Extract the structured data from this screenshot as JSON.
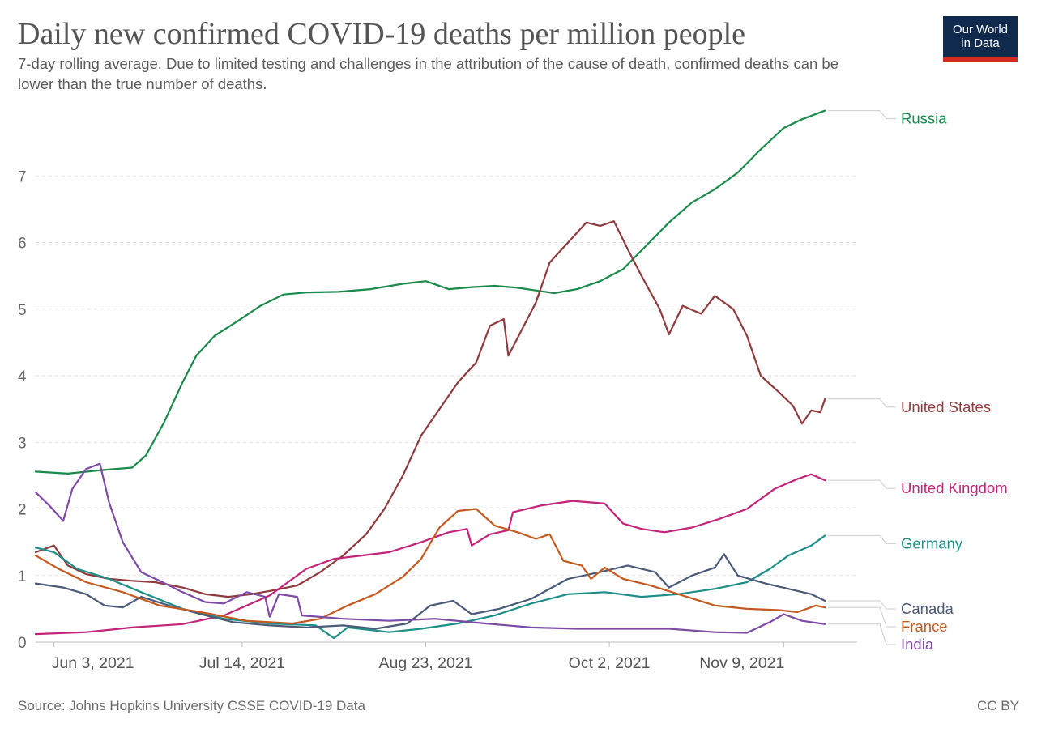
{
  "header": {
    "title": "Daily new confirmed COVID-19 deaths per million people",
    "subtitle": "7-day rolling average. Due to limited testing and challenges in the attribution of the cause of death, confirmed deaths can be lower than the true number of deaths."
  },
  "logo": {
    "line1": "Our World",
    "line2": "in Data"
  },
  "footer": {
    "source": "Source: Johns Hopkins University CSSE COVID-19 Data",
    "license": "CC BY"
  },
  "chart_data": {
    "type": "line",
    "title": "Daily new confirmed COVID-19 deaths per million people",
    "subtitle": "7-day rolling average. Due to limited testing and challenges in the attribution of the cause of death, confirmed deaths can be lower than the true number of deaths.",
    "xlabel": "",
    "ylabel": "",
    "ylim": [
      0,
      8
    ],
    "yticks": [
      0,
      1,
      2,
      3,
      4,
      5,
      6,
      7
    ],
    "xlim": [
      "2021-05-30",
      "2021-11-25"
    ],
    "xticks": [
      {
        "date": "2021-06-03",
        "label": "Jun 3, 2021"
      },
      {
        "date": "2021-07-14",
        "label": "Jul 14, 2021"
      },
      {
        "date": "2021-08-23",
        "label": "Aug 23, 2021"
      },
      {
        "date": "2021-10-02",
        "label": "Oct 2, 2021"
      },
      {
        "date": "2021-11-09",
        "label": "Nov 9, 2021"
      }
    ],
    "grid": true,
    "legend": "right, inline labels",
    "series": [
      {
        "name": "Russia",
        "color": "#1a8a4a",
        "points": [
          [
            "2021-05-30",
            2.56
          ],
          [
            "2021-06-06",
            2.53
          ],
          [
            "2021-06-13",
            2.58
          ],
          [
            "2021-06-20",
            2.62
          ],
          [
            "2021-06-23",
            2.8
          ],
          [
            "2021-06-27",
            3.3
          ],
          [
            "2021-07-01",
            3.9
          ],
          [
            "2021-07-04",
            4.3
          ],
          [
            "2021-07-08",
            4.6
          ],
          [
            "2021-07-13",
            4.82
          ],
          [
            "2021-07-18",
            5.05
          ],
          [
            "2021-07-23",
            5.22
          ],
          [
            "2021-07-28",
            5.25
          ],
          [
            "2021-08-04",
            5.26
          ],
          [
            "2021-08-11",
            5.3
          ],
          [
            "2021-08-18",
            5.38
          ],
          [
            "2021-08-23",
            5.42
          ],
          [
            "2021-08-28",
            5.3
          ],
          [
            "2021-09-02",
            5.33
          ],
          [
            "2021-09-07",
            5.35
          ],
          [
            "2021-09-12",
            5.32
          ],
          [
            "2021-09-16",
            5.28
          ],
          [
            "2021-09-20",
            5.24
          ],
          [
            "2021-09-25",
            5.3
          ],
          [
            "2021-09-30",
            5.42
          ],
          [
            "2021-10-05",
            5.6
          ],
          [
            "2021-10-10",
            5.95
          ],
          [
            "2021-10-15",
            6.3
          ],
          [
            "2021-10-20",
            6.6
          ],
          [
            "2021-10-25",
            6.8
          ],
          [
            "2021-10-30",
            7.05
          ],
          [
            "2021-11-04",
            7.4
          ],
          [
            "2021-11-09",
            7.72
          ],
          [
            "2021-11-13",
            7.85
          ],
          [
            "2021-11-18",
            7.98
          ]
        ]
      },
      {
        "name": "United States",
        "color": "#8f3a3d",
        "points": [
          [
            "2021-05-30",
            1.35
          ],
          [
            "2021-06-03",
            1.45
          ],
          [
            "2021-06-06",
            1.15
          ],
          [
            "2021-06-10",
            1.02
          ],
          [
            "2021-06-15",
            0.95
          ],
          [
            "2021-06-20",
            0.92
          ],
          [
            "2021-06-25",
            0.9
          ],
          [
            "2021-07-01",
            0.82
          ],
          [
            "2021-07-06",
            0.72
          ],
          [
            "2021-07-11",
            0.68
          ],
          [
            "2021-07-16",
            0.72
          ],
          [
            "2021-07-21",
            0.78
          ],
          [
            "2021-07-26",
            0.85
          ],
          [
            "2021-07-31",
            1.05
          ],
          [
            "2021-08-05",
            1.3
          ],
          [
            "2021-08-10",
            1.62
          ],
          [
            "2021-08-14",
            2.0
          ],
          [
            "2021-08-18",
            2.5
          ],
          [
            "2021-08-22",
            3.1
          ],
          [
            "2021-08-26",
            3.5
          ],
          [
            "2021-08-30",
            3.9
          ],
          [
            "2021-09-03",
            4.2
          ],
          [
            "2021-09-06",
            4.75
          ],
          [
            "2021-09-09",
            4.85
          ],
          [
            "2021-09-10",
            4.3
          ],
          [
            "2021-09-13",
            4.7
          ],
          [
            "2021-09-16",
            5.1
          ],
          [
            "2021-09-19",
            5.7
          ],
          [
            "2021-09-23",
            6.0
          ],
          [
            "2021-09-27",
            6.3
          ],
          [
            "2021-09-30",
            6.25
          ],
          [
            "2021-10-03",
            6.32
          ],
          [
            "2021-10-06",
            5.9
          ],
          [
            "2021-10-09",
            5.5
          ],
          [
            "2021-10-13",
            5.0
          ],
          [
            "2021-10-15",
            4.62
          ],
          [
            "2021-10-18",
            5.05
          ],
          [
            "2021-10-22",
            4.93
          ],
          [
            "2021-10-25",
            5.2
          ],
          [
            "2021-10-29",
            5.0
          ],
          [
            "2021-11-01",
            4.6
          ],
          [
            "2021-11-04",
            4.0
          ],
          [
            "2021-11-08",
            3.75
          ],
          [
            "2021-11-11",
            3.55
          ],
          [
            "2021-11-13",
            3.28
          ],
          [
            "2021-11-15",
            3.48
          ],
          [
            "2021-11-17",
            3.45
          ],
          [
            "2021-11-18",
            3.65
          ]
        ]
      },
      {
        "name": "United Kingdom",
        "color": "#c4237a",
        "points": [
          [
            "2021-05-30",
            0.12
          ],
          [
            "2021-06-10",
            0.15
          ],
          [
            "2021-06-20",
            0.22
          ],
          [
            "2021-07-01",
            0.27
          ],
          [
            "2021-07-10",
            0.4
          ],
          [
            "2021-07-20",
            0.7
          ],
          [
            "2021-07-28",
            1.1
          ],
          [
            "2021-08-03",
            1.25
          ],
          [
            "2021-08-09",
            1.3
          ],
          [
            "2021-08-15",
            1.35
          ],
          [
            "2021-08-22",
            1.5
          ],
          [
            "2021-08-28",
            1.65
          ],
          [
            "2021-09-01",
            1.7
          ],
          [
            "2021-09-02",
            1.45
          ],
          [
            "2021-09-06",
            1.62
          ],
          [
            "2021-09-10",
            1.68
          ],
          [
            "2021-09-11",
            1.95
          ],
          [
            "2021-09-17",
            2.05
          ],
          [
            "2021-09-24",
            2.12
          ],
          [
            "2021-10-01",
            2.08
          ],
          [
            "2021-10-05",
            1.78
          ],
          [
            "2021-10-09",
            1.7
          ],
          [
            "2021-10-14",
            1.65
          ],
          [
            "2021-10-20",
            1.72
          ],
          [
            "2021-10-26",
            1.85
          ],
          [
            "2021-11-01",
            2.0
          ],
          [
            "2021-11-07",
            2.3
          ],
          [
            "2021-11-12",
            2.45
          ],
          [
            "2021-11-15",
            2.52
          ],
          [
            "2021-11-18",
            2.43
          ]
        ]
      },
      {
        "name": "Germany",
        "color": "#1e8f88",
        "points": [
          [
            "2021-05-30",
            1.42
          ],
          [
            "2021-06-03",
            1.35
          ],
          [
            "2021-06-08",
            1.1
          ],
          [
            "2021-06-15",
            0.95
          ],
          [
            "2021-06-22",
            0.75
          ],
          [
            "2021-07-01",
            0.5
          ],
          [
            "2021-07-10",
            0.35
          ],
          [
            "2021-07-20",
            0.28
          ],
          [
            "2021-07-30",
            0.25
          ],
          [
            "2021-08-03",
            0.06
          ],
          [
            "2021-08-06",
            0.22
          ],
          [
            "2021-08-15",
            0.15
          ],
          [
            "2021-08-22",
            0.2
          ],
          [
            "2021-08-30",
            0.28
          ],
          [
            "2021-09-07",
            0.4
          ],
          [
            "2021-09-15",
            0.58
          ],
          [
            "2021-09-23",
            0.72
          ],
          [
            "2021-10-01",
            0.75
          ],
          [
            "2021-10-09",
            0.68
          ],
          [
            "2021-10-17",
            0.72
          ],
          [
            "2021-10-25",
            0.8
          ],
          [
            "2021-11-01",
            0.9
          ],
          [
            "2021-11-06",
            1.1
          ],
          [
            "2021-11-10",
            1.3
          ],
          [
            "2021-11-15",
            1.45
          ],
          [
            "2021-11-18",
            1.6
          ]
        ]
      },
      {
        "name": "Canada",
        "color": "#4b5a78",
        "points": [
          [
            "2021-05-30",
            0.88
          ],
          [
            "2021-06-05",
            0.82
          ],
          [
            "2021-06-10",
            0.72
          ],
          [
            "2021-06-14",
            0.55
          ],
          [
            "2021-06-18",
            0.52
          ],
          [
            "2021-06-22",
            0.68
          ],
          [
            "2021-06-28",
            0.55
          ],
          [
            "2021-07-05",
            0.42
          ],
          [
            "2021-07-12",
            0.3
          ],
          [
            "2021-07-20",
            0.25
          ],
          [
            "2021-07-28",
            0.22
          ],
          [
            "2021-08-05",
            0.25
          ],
          [
            "2021-08-12",
            0.2
          ],
          [
            "2021-08-19",
            0.28
          ],
          [
            "2021-08-24",
            0.55
          ],
          [
            "2021-08-29",
            0.62
          ],
          [
            "2021-09-02",
            0.42
          ],
          [
            "2021-09-08",
            0.5
          ],
          [
            "2021-09-15",
            0.65
          ],
          [
            "2021-09-23",
            0.95
          ],
          [
            "2021-09-30",
            1.05
          ],
          [
            "2021-10-06",
            1.15
          ],
          [
            "2021-10-12",
            1.05
          ],
          [
            "2021-10-15",
            0.82
          ],
          [
            "2021-10-20",
            1.0
          ],
          [
            "2021-10-25",
            1.12
          ],
          [
            "2021-10-27",
            1.32
          ],
          [
            "2021-10-30",
            1.0
          ],
          [
            "2021-11-05",
            0.88
          ],
          [
            "2021-11-10",
            0.8
          ],
          [
            "2021-11-15",
            0.72
          ],
          [
            "2021-11-18",
            0.62
          ]
        ]
      },
      {
        "name": "France",
        "color": "#c55a1f",
        "points": [
          [
            "2021-05-30",
            1.3
          ],
          [
            "2021-06-04",
            1.1
          ],
          [
            "2021-06-10",
            0.9
          ],
          [
            "2021-06-18",
            0.75
          ],
          [
            "2021-06-26",
            0.55
          ],
          [
            "2021-07-05",
            0.45
          ],
          [
            "2021-07-15",
            0.32
          ],
          [
            "2021-07-25",
            0.28
          ],
          [
            "2021-07-31",
            0.35
          ],
          [
            "2021-08-06",
            0.55
          ],
          [
            "2021-08-12",
            0.72
          ],
          [
            "2021-08-18",
            0.98
          ],
          [
            "2021-08-22",
            1.25
          ],
          [
            "2021-08-26",
            1.72
          ],
          [
            "2021-08-30",
            1.97
          ],
          [
            "2021-09-03",
            2.0
          ],
          [
            "2021-09-07",
            1.75
          ],
          [
            "2021-09-12",
            1.65
          ],
          [
            "2021-09-16",
            1.55
          ],
          [
            "2021-09-19",
            1.62
          ],
          [
            "2021-09-22",
            1.22
          ],
          [
            "2021-09-26",
            1.15
          ],
          [
            "2021-09-28",
            0.95
          ],
          [
            "2021-10-01",
            1.12
          ],
          [
            "2021-10-05",
            0.95
          ],
          [
            "2021-10-11",
            0.85
          ],
          [
            "2021-10-18",
            0.7
          ],
          [
            "2021-10-25",
            0.55
          ],
          [
            "2021-11-01",
            0.5
          ],
          [
            "2021-11-08",
            0.48
          ],
          [
            "2021-11-12",
            0.45
          ],
          [
            "2021-11-16",
            0.55
          ],
          [
            "2021-11-18",
            0.52
          ]
        ]
      },
      {
        "name": "India",
        "color": "#7d4aa6",
        "points": [
          [
            "2021-05-30",
            2.25
          ],
          [
            "2021-06-02",
            2.05
          ],
          [
            "2021-06-05",
            1.82
          ],
          [
            "2021-06-07",
            2.3
          ],
          [
            "2021-06-10",
            2.6
          ],
          [
            "2021-06-13",
            2.68
          ],
          [
            "2021-06-15",
            2.1
          ],
          [
            "2021-06-18",
            1.5
          ],
          [
            "2021-06-22",
            1.05
          ],
          [
            "2021-06-26",
            0.92
          ],
          [
            "2021-07-01",
            0.75
          ],
          [
            "2021-07-06",
            0.6
          ],
          [
            "2021-07-10",
            0.58
          ],
          [
            "2021-07-15",
            0.75
          ],
          [
            "2021-07-19",
            0.68
          ],
          [
            "2021-07-20",
            0.38
          ],
          [
            "2021-07-22",
            0.72
          ],
          [
            "2021-07-26",
            0.68
          ],
          [
            "2021-07-27",
            0.4
          ],
          [
            "2021-08-05",
            0.35
          ],
          [
            "2021-08-15",
            0.32
          ],
          [
            "2021-08-25",
            0.35
          ],
          [
            "2021-09-05",
            0.28
          ],
          [
            "2021-09-15",
            0.22
          ],
          [
            "2021-09-25",
            0.2
          ],
          [
            "2021-10-05",
            0.2
          ],
          [
            "2021-10-15",
            0.2
          ],
          [
            "2021-10-25",
            0.15
          ],
          [
            "2021-11-01",
            0.14
          ],
          [
            "2021-11-06",
            0.3
          ],
          [
            "2021-11-09",
            0.42
          ],
          [
            "2021-11-13",
            0.32
          ],
          [
            "2021-11-18",
            0.27
          ]
        ]
      }
    ]
  }
}
